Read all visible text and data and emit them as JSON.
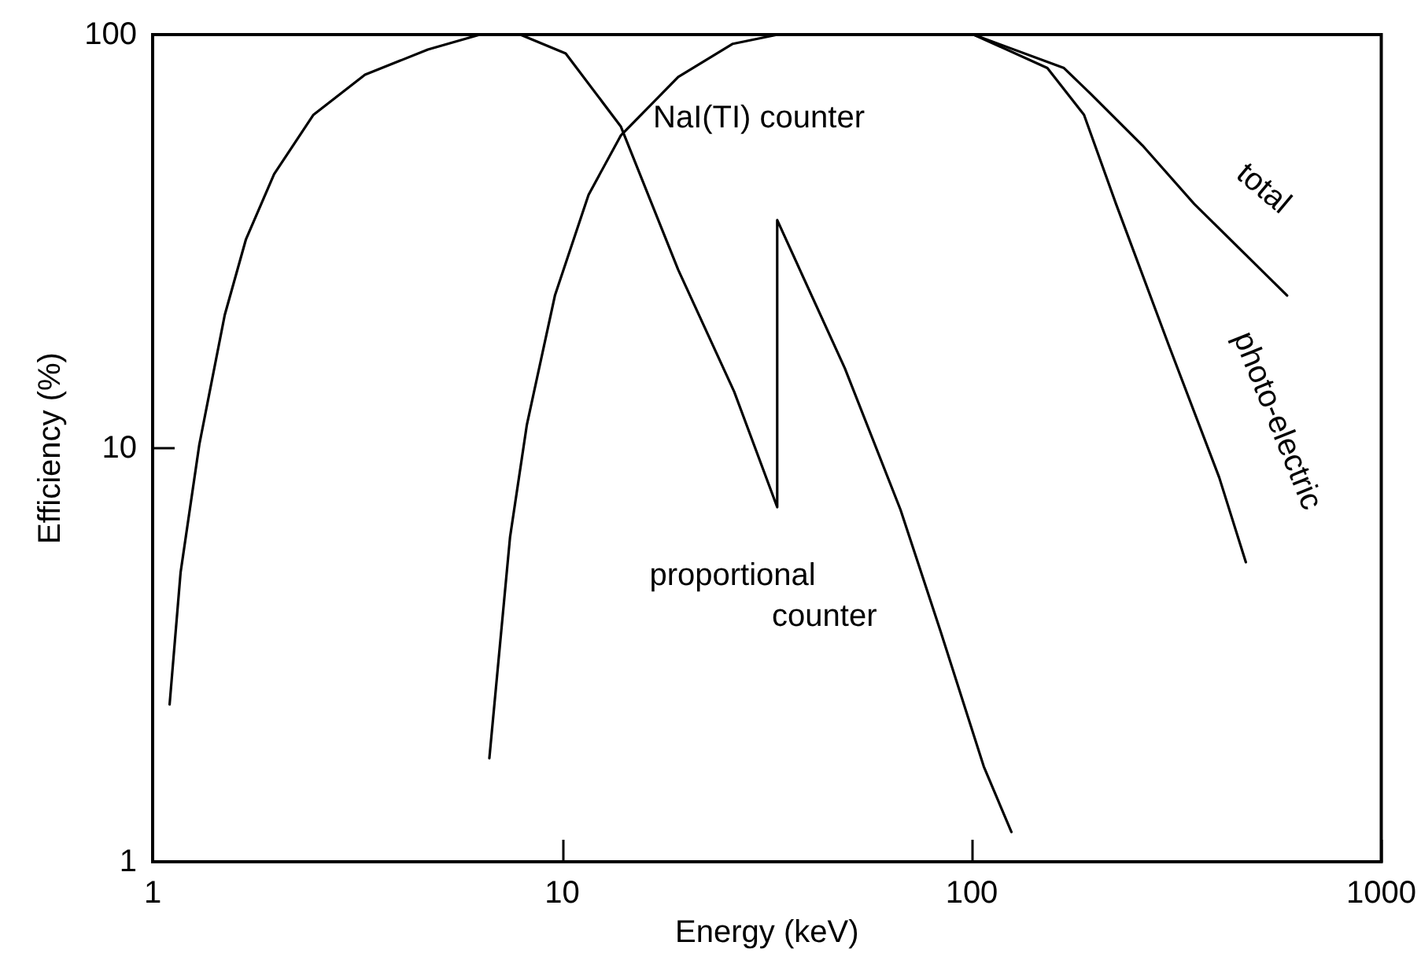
{
  "chart_data": {
    "type": "line",
    "xlabel": "Energy (keV)",
    "ylabel": "Efficiency (%)",
    "annotations": [
      "NaI(TI) counter"
    ],
    "series": [
      {
        "name": "proportional counter",
        "color": "#000000",
        "x": [
          1.1,
          1.17,
          1.3,
          1.5,
          1.69,
          1.98,
          2.47,
          3.3,
          4.7,
          6.3,
          7.9,
          10.2,
          13.9,
          19.2,
          26.3,
          33.5,
          33.5,
          49,
          67,
          84,
          107,
          125
        ],
        "values": [
          2.4,
          5.0,
          10.2,
          21,
          32,
          46,
          64,
          80,
          92,
          100,
          100,
          90,
          60,
          27,
          13.7,
          7.2,
          35.6,
          15.6,
          7.1,
          3.6,
          1.7,
          1.18
        ]
      },
      {
        "name": "total",
        "color": "#000000",
        "x": [
          6.64,
          7.46,
          8.2,
          9.6,
          11.6,
          13.9,
          19.2,
          26.1,
          33.6,
          101,
          168,
          195,
          261,
          349,
          589
        ],
        "values": [
          1.78,
          6.1,
          11.4,
          23.4,
          41,
          57,
          79,
          95,
          100,
          100,
          83,
          72,
          54,
          39,
          23.4
        ]
      },
      {
        "name": "photo-electric",
        "color": "#000000",
        "x": [
          101,
          153,
          188,
          225,
          303,
          402,
          467
        ],
        "values": [
          100,
          83,
          64,
          39,
          17.7,
          8.5,
          5.3
        ]
      }
    ],
    "xlim": [
      1,
      1000
    ],
    "ylim": [
      1,
      100
    ],
    "xticks": [
      1,
      10,
      100,
      1000
    ],
    "yticks": [
      1,
      10,
      100
    ],
    "log": "xy",
    "grid": false,
    "legend": false,
    "marker": "none",
    "line_style": "solid"
  }
}
